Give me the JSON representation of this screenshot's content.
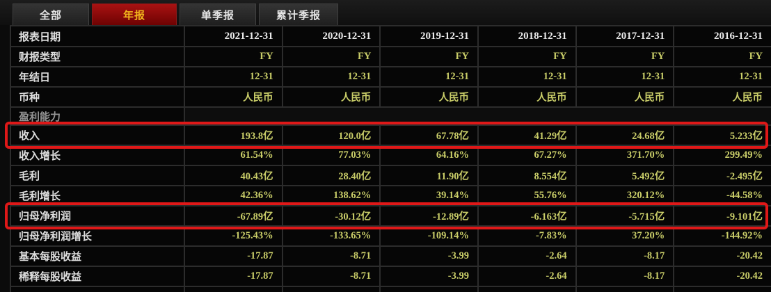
{
  "tabs": [
    {
      "id": "all",
      "label": "全部",
      "active": false
    },
    {
      "id": "annual",
      "label": "年报",
      "active": true
    },
    {
      "id": "single-quarter",
      "label": "单季报",
      "active": false
    },
    {
      "id": "cumulative-quarter",
      "label": "累计季报",
      "active": false
    }
  ],
  "colors": {
    "tab_active_top": "#a81212",
    "tab_active_bottom": "#6e0202",
    "tab_active_text": "#f2b71d",
    "value_text": "#cace69",
    "highlight_border": "#df1818"
  },
  "table": {
    "header_label": "报表日期",
    "columns": [
      "2021-12-31",
      "2020-12-31",
      "2019-12-31",
      "2018-12-31",
      "2017-12-31",
      "2016-12-31"
    ],
    "rows": [
      {
        "label": "财报类型",
        "values": [
          "FY",
          "FY",
          "FY",
          "FY",
          "FY",
          "FY"
        ]
      },
      {
        "label": "年结日",
        "values": [
          "12-31",
          "12-31",
          "12-31",
          "12-31",
          "12-31",
          "12-31"
        ]
      },
      {
        "label": "币种",
        "values": [
          "人民币",
          "人民币",
          "人民币",
          "人民币",
          "人民币",
          "人民币"
        ]
      },
      {
        "label": "盈利能力",
        "section": true
      },
      {
        "label": "收入",
        "highlighted": true,
        "name": "revenue",
        "values": [
          "193.8亿",
          "120.0亿",
          "67.78亿",
          "41.29亿",
          "24.68亿",
          "5.233亿"
        ]
      },
      {
        "label": "收入增长",
        "values": [
          "61.54%",
          "77.03%",
          "64.16%",
          "67.27%",
          "371.70%",
          "299.49%"
        ]
      },
      {
        "label": "毛利",
        "values": [
          "40.43亿",
          "28.40亿",
          "11.90亿",
          "8.554亿",
          "5.492亿",
          "-2.495亿"
        ]
      },
      {
        "label": "毛利增长",
        "values": [
          "42.36%",
          "138.62%",
          "39.14%",
          "55.76%",
          "320.12%",
          "-44.58%"
        ]
      },
      {
        "label": "归母净利润",
        "highlighted": true,
        "name": "net-profit",
        "values": [
          "-67.89亿",
          "-30.12亿",
          "-12.89亿",
          "-6.163亿",
          "-5.715亿",
          "-9.101亿"
        ]
      },
      {
        "label": "归母净利润增长",
        "values": [
          "-125.43%",
          "-133.65%",
          "-109.14%",
          "-7.83%",
          "37.20%",
          "-144.92%"
        ]
      },
      {
        "label": "基本每股收益",
        "values": [
          "-17.87",
          "-8.71",
          "-3.99",
          "-2.64",
          "-8.17",
          "-20.42"
        ]
      },
      {
        "label": "稀释每股收益",
        "values": [
          "-17.87",
          "-8.71",
          "-3.99",
          "-2.64",
          "-8.17",
          "-20.42"
        ]
      }
    ]
  }
}
